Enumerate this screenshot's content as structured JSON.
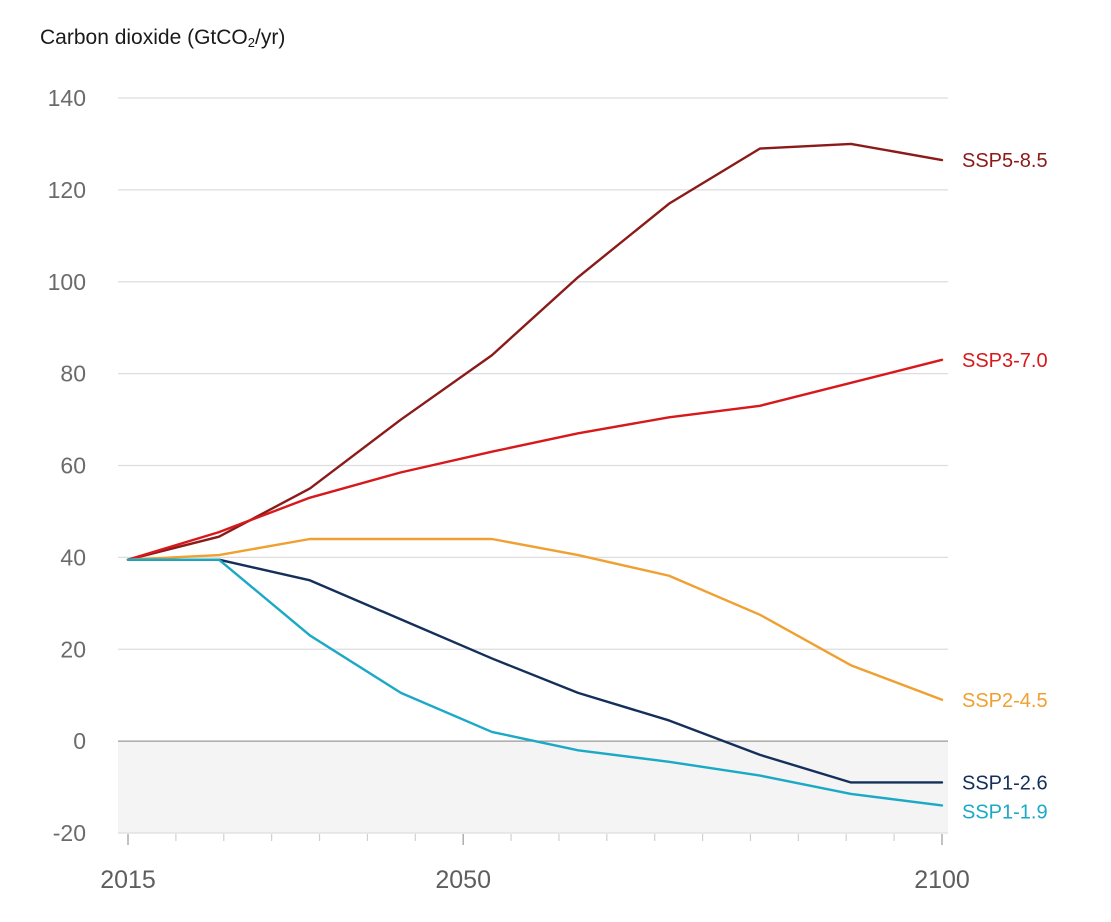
{
  "chart_data": {
    "type": "line",
    "title": "Carbon dioxide (GtCO₂/yr)",
    "title_parts": {
      "pre": "Carbon dioxide (GtCO",
      "sub": "2",
      "post": "/yr)"
    },
    "xlabel": "",
    "ylabel": "Carbon dioxide (GtCO2/yr)",
    "xlim": [
      2015,
      2100
    ],
    "ylim": [
      -20,
      140
    ],
    "x_tick_labels": [
      "2015",
      "2050",
      "2100"
    ],
    "x_ticks": [
      2015,
      2050,
      2100
    ],
    "x_minor_tick_step": 5,
    "y_ticks": [
      140,
      120,
      100,
      80,
      60,
      40,
      20,
      0,
      -20
    ],
    "y_tick_labels": [
      "140",
      "120",
      "100",
      "80",
      "60",
      "40",
      "20",
      "0",
      "-20"
    ],
    "grid": "horizontal",
    "negative_region_shaded": true,
    "legend": "direct labels at right end of lines",
    "x": [
      2015,
      2024.5,
      2034,
      2043.5,
      2053,
      2062,
      2071.5,
      2081,
      2090.5,
      2100
    ],
    "series": [
      {
        "name": "SSP5-8.5",
        "color": "#8b1a1a",
        "values": [
          39.5,
          44.5,
          55,
          70,
          84,
          101,
          117,
          129,
          130,
          126.5
        ]
      },
      {
        "name": "SSP3-7.0",
        "color": "#d7191c",
        "values": [
          39.5,
          45.5,
          53,
          58.5,
          63,
          67,
          70.5,
          73,
          78,
          83
        ]
      },
      {
        "name": "SSP2-4.5",
        "color": "#f0a030",
        "values": [
          39.5,
          40.5,
          44,
          44,
          44,
          40.5,
          36,
          27.5,
          16.5,
          9
        ]
      },
      {
        "name": "SSP1-2.6",
        "color": "#14305a",
        "values": [
          39.5,
          39.5,
          35,
          26.5,
          18,
          10.5,
          4.5,
          -3,
          -9,
          -9
        ]
      },
      {
        "name": "SSP1-1.9",
        "color": "#1ba9c6",
        "values": [
          39.5,
          39.5,
          23,
          10.5,
          2,
          -2,
          -4.5,
          -7.5,
          -11.5,
          -14
        ]
      }
    ]
  }
}
